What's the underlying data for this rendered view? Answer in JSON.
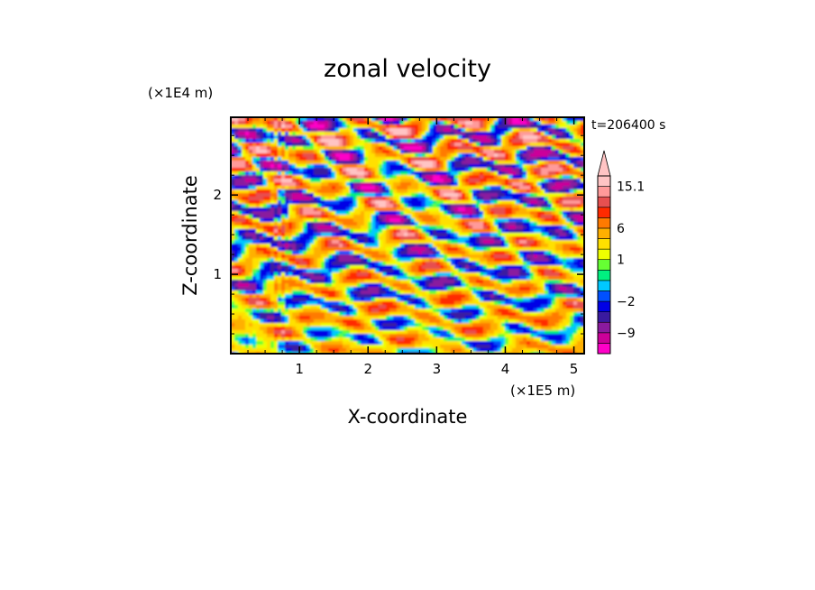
{
  "chart_data": {
    "type": "heatmap",
    "title": "zonal velocity",
    "xlabel": "X-coordinate",
    "ylabel": "Z-coordinate",
    "x_unit": "(×1E5 m)",
    "y_unit": "(×1E4 m)",
    "time_label": "t=206400 s",
    "xlim": [
      0,
      5.15
    ],
    "ylim": [
      0,
      2.98
    ],
    "x_ticks": [
      "1",
      "2",
      "3",
      "4",
      "5"
    ],
    "y_ticks": [
      "1",
      "2"
    ],
    "colorbar": {
      "levels": [
        -15,
        -12,
        -9,
        -6,
        -4,
        -2,
        -1,
        0,
        0.5,
        1,
        2,
        4,
        6,
        8,
        10,
        12,
        15.1
      ],
      "colors": [
        "#ff00c8",
        "#cc0099",
        "#8a1a9e",
        "#3a1aa0",
        "#0000e6",
        "#0050ff",
        "#00c8ff",
        "#00f080",
        "#66ff33",
        "#eeff00",
        "#ffe000",
        "#ffb000",
        "#ff7a00",
        "#ff2a00",
        "#e65050",
        "#ff9a9a",
        "#ffc4c4"
      ],
      "labels": [
        "15.1",
        "6",
        "1",
        "−2",
        "−9"
      ],
      "extend_top": true
    }
  }
}
